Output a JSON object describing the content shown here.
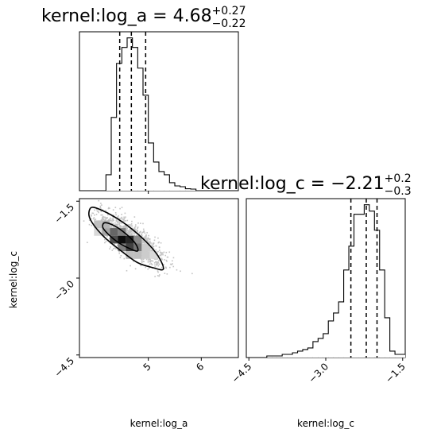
{
  "chart_data": [
    {
      "type": "histogram",
      "panel": "top-left",
      "parameter": "kernel:log_a",
      "title": {
        "prefix": "kernel:log_a = 4.68",
        "sup": "+0.27",
        "sub": "−0.22"
      },
      "xlim": [
        3.7,
        6.7
      ],
      "bin_edges": [
        3.7,
        3.8,
        3.9,
        4.0,
        4.1,
        4.2,
        4.3,
        4.4,
        4.5,
        4.6,
        4.7,
        4.8,
        4.9,
        5.0,
        5.1,
        5.2,
        5.3,
        5.4,
        5.5,
        5.6,
        5.7,
        5.8,
        5.9,
        6.0,
        6.1,
        6.2,
        6.3,
        6.4,
        6.5,
        6.6,
        6.7
      ],
      "counts": [
        0,
        0,
        0,
        0,
        0,
        0.1,
        0.46,
        0.8,
        0.9,
        0.96,
        0.9,
        0.77,
        0.6,
        0.3,
        0.18,
        0.12,
        0.1,
        0.05,
        0.03,
        0.025,
        0.012,
        0.01,
        0,
        0,
        0,
        0,
        0,
        0,
        0,
        0
      ],
      "quantiles": [
        4.46,
        4.68,
        4.95
      ],
      "xticks": [
        5
      ]
    },
    {
      "type": "histogram",
      "panel": "bottom-right",
      "parameter": "kernel:log_c",
      "title": {
        "prefix": "kernel:log_c = −2.21",
        "sup": "+0.2",
        "sub": "−0.3"
      },
      "xlim": [
        -4.55,
        -1.45
      ],
      "bin_edges": [
        -4.55,
        -4.45,
        -4.35,
        -4.25,
        -4.15,
        -4.05,
        -3.95,
        -3.85,
        -3.75,
        -3.65,
        -3.55,
        -3.45,
        -3.35,
        -3.25,
        -3.15,
        -3.05,
        -2.95,
        -2.85,
        -2.75,
        -2.65,
        -2.55,
        -2.45,
        -2.35,
        -2.25,
        -2.15,
        -2.05,
        -1.95,
        -1.85,
        -1.75,
        -1.65,
        -1.55,
        -1.45
      ],
      "counts": [
        0,
        0,
        0,
        0,
        0.01,
        0.01,
        0.01,
        0.02,
        0.02,
        0.03,
        0.04,
        0.05,
        0.06,
        0.1,
        0.12,
        0.15,
        0.23,
        0.28,
        0.35,
        0.55,
        0.7,
        0.9,
        0.9,
        0.96,
        0.92,
        0.8,
        0.55,
        0.25,
        0.04,
        0.02,
        0.02
      ],
      "quantiles": [
        -2.51,
        -2.21,
        -2.0
      ],
      "xticks": [
        -4.5,
        -3.0,
        -1.5
      ],
      "xtick_labels": [
        "−4.5",
        "−3.0",
        "−1.5"
      ]
    },
    {
      "type": "heatmap",
      "panel": "bottom-left",
      "x_parameter": "kernel:log_a",
      "y_parameter": "kernel:log_c",
      "xlim": [
        3.7,
        6.7
      ],
      "ylim": [
        -4.55,
        -1.45
      ],
      "xticks": [
        5,
        6
      ],
      "yticks": [
        -1.5,
        -3.0,
        -4.5
      ],
      "ytick_labels": [
        "−1.5",
        "−3.0",
        "−4.5"
      ],
      "density_cells": [
        {
          "x": 4.05,
          "y": -1.95,
          "v": 0.25
        },
        {
          "x": 4.2,
          "y": -1.95,
          "v": 0.3
        },
        {
          "x": 4.05,
          "y": -2.1,
          "v": 0.15
        },
        {
          "x": 4.2,
          "y": -2.1,
          "v": 0.35
        },
        {
          "x": 4.35,
          "y": -2.1,
          "v": 0.6
        },
        {
          "x": 4.5,
          "y": -2.1,
          "v": 0.5
        },
        {
          "x": 4.35,
          "y": -2.25,
          "v": 0.7
        },
        {
          "x": 4.5,
          "y": -2.25,
          "v": 0.95
        },
        {
          "x": 4.65,
          "y": -2.25,
          "v": 0.85
        },
        {
          "x": 4.8,
          "y": -2.25,
          "v": 0.45
        },
        {
          "x": 4.5,
          "y": -2.4,
          "v": 0.5
        },
        {
          "x": 4.65,
          "y": -2.4,
          "v": 0.75
        },
        {
          "x": 4.8,
          "y": -2.4,
          "v": 0.55
        },
        {
          "x": 4.95,
          "y": -2.4,
          "v": 0.2
        },
        {
          "x": 4.65,
          "y": -2.55,
          "v": 0.25
        },
        {
          "x": 4.8,
          "y": -2.55,
          "v": 0.25
        },
        {
          "x": 4.95,
          "y": -2.55,
          "v": 0.2
        },
        {
          "x": 5.1,
          "y": -2.55,
          "v": 0.15
        }
      ],
      "contours": [
        {
          "level": "inner",
          "points": [
            [
              4.18,
              -1.92
            ],
            [
              4.36,
              -1.98
            ],
            [
              4.58,
              -2.14
            ],
            [
              4.76,
              -2.33
            ],
            [
              4.8,
              -2.47
            ],
            [
              4.66,
              -2.43
            ],
            [
              4.44,
              -2.31
            ],
            [
              4.25,
              -2.15
            ],
            [
              4.14,
              -2.01
            ]
          ]
        },
        {
          "level": "outer",
          "points": [
            [
              3.93,
              -1.62
            ],
            [
              4.15,
              -1.69
            ],
            [
              4.46,
              -1.87
            ],
            [
              4.78,
              -2.12
            ],
            [
              5.05,
              -2.39
            ],
            [
              5.22,
              -2.63
            ],
            [
              5.28,
              -2.83
            ],
            [
              5.1,
              -2.8
            ],
            [
              4.8,
              -2.7
            ],
            [
              4.5,
              -2.48
            ],
            [
              4.2,
              -2.23
            ],
            [
              3.98,
              -1.98
            ],
            [
              3.88,
              -1.78
            ]
          ]
        }
      ]
    }
  ],
  "axis_labels": {
    "left_x": "kernel:log_a",
    "right_x": "kernel:log_c",
    "left_y": "kernel:log_c"
  }
}
